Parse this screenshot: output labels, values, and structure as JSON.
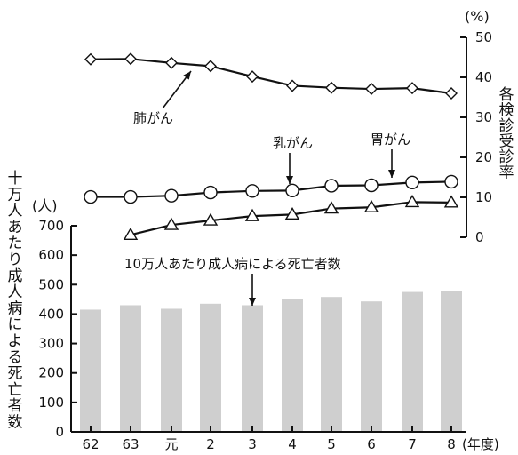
{
  "chart_data": {
    "type": "bar+line",
    "title": "",
    "x_categories": [
      "62",
      "63",
      "元",
      "2",
      "3",
      "4",
      "5",
      "6",
      "7",
      "8"
    ],
    "x_unit": "(年度)",
    "bars": {
      "name": "10万人あたり成人病による死亡者数",
      "values": [
        415,
        430,
        418,
        435,
        430,
        450,
        458,
        443,
        475,
        478
      ],
      "axis": "left",
      "color": "#cfcfcf"
    },
    "left_axis": {
      "label": "十万人あたり成人病による死亡者数",
      "unit": "(人)",
      "range": [
        0,
        700
      ],
      "ticks": [
        "0",
        "100",
        "200",
        "300",
        "400",
        "500",
        "600",
        "700"
      ]
    },
    "right_axis": {
      "label": "各検診受診率",
      "unit": "(%)",
      "range": [
        0,
        50
      ],
      "ticks": [
        "0",
        "10",
        "20",
        "30",
        "40",
        "50"
      ]
    },
    "series": [
      {
        "name": "肺がん",
        "marker": "diamond",
        "axis": "right",
        "values": [
          44.5,
          44.6,
          43.6,
          42.8,
          40.2,
          37.9,
          37.4,
          37.1,
          37.3,
          36.0
        ]
      },
      {
        "name": "胃がん",
        "marker": "circle",
        "axis": "right",
        "values": [
          10.1,
          10.1,
          10.4,
          11.2,
          11.6,
          11.7,
          12.9,
          13.0,
          13.7,
          13.9
        ]
      },
      {
        "name": "乳がん",
        "marker": "triangle",
        "axis": "right",
        "values": [
          null,
          0.6,
          3.1,
          4.2,
          5.3,
          5.7,
          7.2,
          7.5,
          8.8,
          8.7
        ]
      }
    ],
    "legend": "inline annotations with arrows",
    "grid": false
  }
}
